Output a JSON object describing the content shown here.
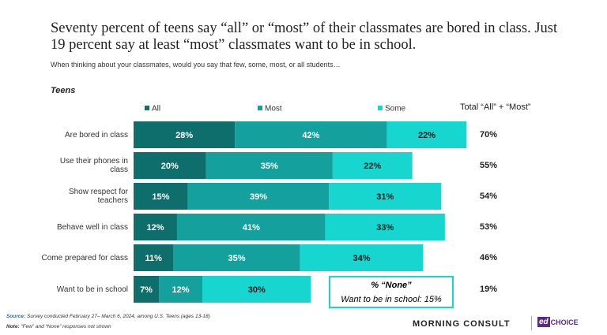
{
  "chart_data": {
    "type": "stacked_bar_horizontal",
    "title": "Seventy percent of teens say “all” or “most” of their classmates are bored in class. Just 19 percent say at least “most” classmates want to be in school.",
    "subtitle": "When thinking about your classmates, would you say that few, some, most, or all students…",
    "group_label": "Teens",
    "categories": [
      "Are bored in class",
      "Use their phones in class",
      "Show respect for teachers",
      "Behave well in class",
      "Come prepared for class",
      "Want to be in school"
    ],
    "xlim": [
      0,
      100
    ],
    "series": [
      {
        "name": "All",
        "color": "#0e6e6b",
        "text_color": "#ffffff",
        "values": [
          28,
          20,
          15,
          12,
          11,
          7
        ],
        "value_labels": [
          "28%",
          "20%",
          "15%",
          "12%",
          "11%",
          "7%"
        ]
      },
      {
        "name": "Most",
        "color": "#14a09d",
        "text_color": "#ffffff",
        "values": [
          42,
          35,
          39,
          41,
          35,
          12
        ],
        "value_labels": [
          "42%",
          "35%",
          "39%",
          "41%",
          "35%",
          "12%"
        ]
      },
      {
        "name": "Some",
        "color": "#17d6d0",
        "text_color": "#1a1a1a",
        "values": [
          22,
          22,
          31,
          33,
          34,
          30
        ],
        "value_labels": [
          "22%",
          "22%",
          "31%",
          "33%",
          "34%",
          "30%"
        ]
      }
    ],
    "totals": {
      "label": "Total “All” + “Most”",
      "values": [
        70,
        55,
        54,
        53,
        46,
        19
      ],
      "value_labels": [
        "70%",
        "55%",
        "54%",
        "53%",
        "46%",
        "19%"
      ]
    },
    "annotation": {
      "title": "% “None”",
      "text": "Want to be in school: 15%"
    },
    "source": {
      "label": "Source:",
      "text": "Survey conducted February 27– March 6, 2024,  among U.S. Teens (ages 13-18)"
    },
    "note": {
      "label": "Note:",
      "text": "“Few” and “None” responses not shown"
    },
    "logos": [
      "MORNING CONSULT",
      "CHOICE"
    ]
  }
}
